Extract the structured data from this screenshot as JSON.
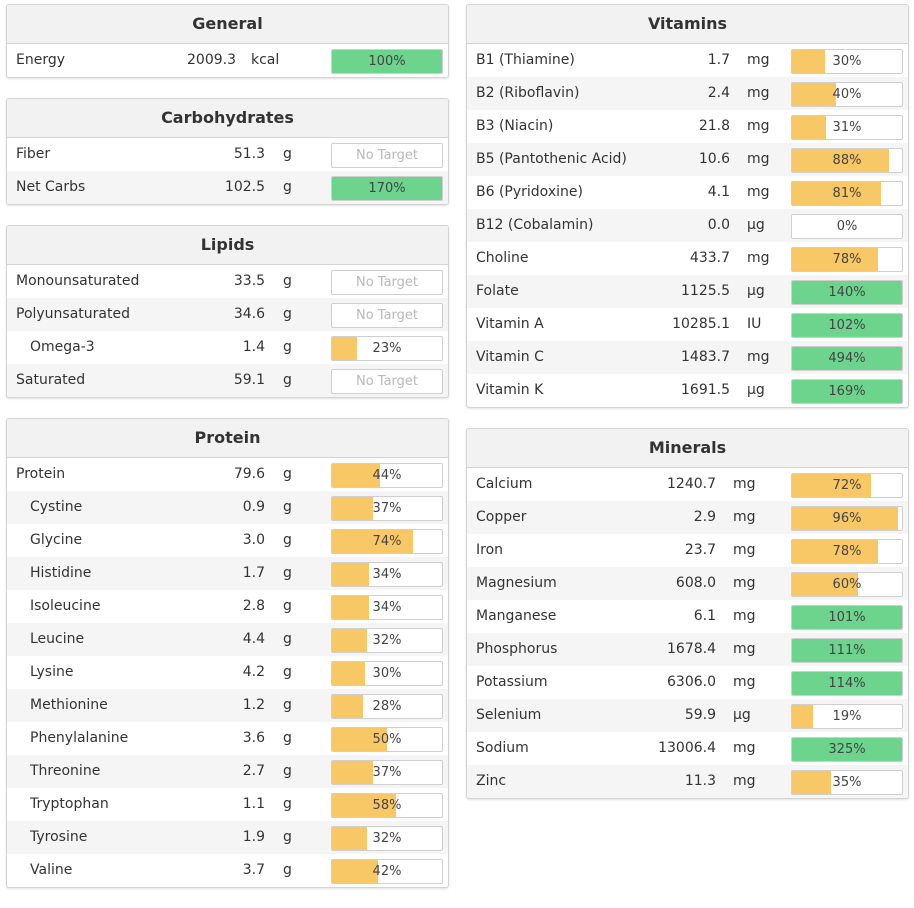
{
  "colors": {
    "green": "#6cd48d",
    "yellow": "#f9c866"
  },
  "general": {
    "title": "General",
    "rows": [
      {
        "name": "Energy",
        "amount": "2009.3",
        "unit": "kcal",
        "pct_text": "100%",
        "pct": 100
      }
    ]
  },
  "carbohydrates": {
    "title": "Carbohydrates",
    "rows": [
      {
        "name": "Fiber",
        "amount": "51.3",
        "unit": "g",
        "pct_text": "No Target",
        "pct": null
      },
      {
        "name": "Net Carbs",
        "amount": "102.5",
        "unit": "g",
        "pct_text": "170%",
        "pct": 170
      }
    ]
  },
  "lipids": {
    "title": "Lipids",
    "rows": [
      {
        "name": "Monounsaturated",
        "amount": "33.5",
        "unit": "g",
        "pct_text": "No Target",
        "pct": null
      },
      {
        "name": "Polyunsaturated",
        "amount": "34.6",
        "unit": "g",
        "pct_text": "No Target",
        "pct": null
      },
      {
        "name": "Omega-3",
        "amount": "1.4",
        "unit": "g",
        "pct_text": "23%",
        "pct": 23,
        "indent": true
      },
      {
        "name": "Saturated",
        "amount": "59.1",
        "unit": "g",
        "pct_text": "No Target",
        "pct": null
      }
    ]
  },
  "protein": {
    "title": "Protein",
    "rows": [
      {
        "name": "Protein",
        "amount": "79.6",
        "unit": "g",
        "pct_text": "44%",
        "pct": 44
      },
      {
        "name": "Cystine",
        "amount": "0.9",
        "unit": "g",
        "pct_text": "37%",
        "pct": 37,
        "indent": true
      },
      {
        "name": "Glycine",
        "amount": "3.0",
        "unit": "g",
        "pct_text": "74%",
        "pct": 74,
        "indent": true
      },
      {
        "name": "Histidine",
        "amount": "1.7",
        "unit": "g",
        "pct_text": "34%",
        "pct": 34,
        "indent": true
      },
      {
        "name": "Isoleucine",
        "amount": "2.8",
        "unit": "g",
        "pct_text": "34%",
        "pct": 34,
        "indent": true
      },
      {
        "name": "Leucine",
        "amount": "4.4",
        "unit": "g",
        "pct_text": "32%",
        "pct": 32,
        "indent": true
      },
      {
        "name": "Lysine",
        "amount": "4.2",
        "unit": "g",
        "pct_text": "30%",
        "pct": 30,
        "indent": true
      },
      {
        "name": "Methionine",
        "amount": "1.2",
        "unit": "g",
        "pct_text": "28%",
        "pct": 28,
        "indent": true
      },
      {
        "name": "Phenylalanine",
        "amount": "3.6",
        "unit": "g",
        "pct_text": "50%",
        "pct": 50,
        "indent": true
      },
      {
        "name": "Threonine",
        "amount": "2.7",
        "unit": "g",
        "pct_text": "37%",
        "pct": 37,
        "indent": true
      },
      {
        "name": "Tryptophan",
        "amount": "1.1",
        "unit": "g",
        "pct_text": "58%",
        "pct": 58,
        "indent": true
      },
      {
        "name": "Tyrosine",
        "amount": "1.9",
        "unit": "g",
        "pct_text": "32%",
        "pct": 32,
        "indent": true
      },
      {
        "name": "Valine",
        "amount": "3.7",
        "unit": "g",
        "pct_text": "42%",
        "pct": 42,
        "indent": true
      }
    ]
  },
  "vitamins": {
    "title": "Vitamins",
    "rows": [
      {
        "name": "B1 (Thiamine)",
        "amount": "1.7",
        "unit": "mg",
        "pct_text": "30%",
        "pct": 30
      },
      {
        "name": "B2 (Riboflavin)",
        "amount": "2.4",
        "unit": "mg",
        "pct_text": "40%",
        "pct": 40
      },
      {
        "name": "B3 (Niacin)",
        "amount": "21.8",
        "unit": "mg",
        "pct_text": "31%",
        "pct": 31
      },
      {
        "name": "B5 (Pantothenic Acid)",
        "amount": "10.6",
        "unit": "mg",
        "pct_text": "88%",
        "pct": 88
      },
      {
        "name": "B6 (Pyridoxine)",
        "amount": "4.1",
        "unit": "mg",
        "pct_text": "81%",
        "pct": 81
      },
      {
        "name": "B12 (Cobalamin)",
        "amount": "0.0",
        "unit": "µg",
        "pct_text": "0%",
        "pct": 0
      },
      {
        "name": "Choline",
        "amount": "433.7",
        "unit": "mg",
        "pct_text": "78%",
        "pct": 78
      },
      {
        "name": "Folate",
        "amount": "1125.5",
        "unit": "µg",
        "pct_text": "140%",
        "pct": 140
      },
      {
        "name": "Vitamin A",
        "amount": "10285.1",
        "unit": "IU",
        "pct_text": "102%",
        "pct": 102
      },
      {
        "name": "Vitamin C",
        "amount": "1483.7",
        "unit": "mg",
        "pct_text": "494%",
        "pct": 494
      },
      {
        "name": "Vitamin K",
        "amount": "1691.5",
        "unit": "µg",
        "pct_text": "169%",
        "pct": 169
      }
    ]
  },
  "minerals": {
    "title": "Minerals",
    "rows": [
      {
        "name": "Calcium",
        "amount": "1240.7",
        "unit": "mg",
        "pct_text": "72%",
        "pct": 72
      },
      {
        "name": "Copper",
        "amount": "2.9",
        "unit": "mg",
        "pct_text": "96%",
        "pct": 96
      },
      {
        "name": "Iron",
        "amount": "23.7",
        "unit": "mg",
        "pct_text": "78%",
        "pct": 78
      },
      {
        "name": "Magnesium",
        "amount": "608.0",
        "unit": "mg",
        "pct_text": "60%",
        "pct": 60
      },
      {
        "name": "Manganese",
        "amount": "6.1",
        "unit": "mg",
        "pct_text": "101%",
        "pct": 101
      },
      {
        "name": "Phosphorus",
        "amount": "1678.4",
        "unit": "mg",
        "pct_text": "111%",
        "pct": 111
      },
      {
        "name": "Potassium",
        "amount": "6306.0",
        "unit": "mg",
        "pct_text": "114%",
        "pct": 114
      },
      {
        "name": "Selenium",
        "amount": "59.9",
        "unit": "µg",
        "pct_text": "19%",
        "pct": 19
      },
      {
        "name": "Sodium",
        "amount": "13006.4",
        "unit": "mg",
        "pct_text": "325%",
        "pct": 325
      },
      {
        "name": "Zinc",
        "amount": "11.3",
        "unit": "mg",
        "pct_text": "35%",
        "pct": 35
      }
    ]
  }
}
